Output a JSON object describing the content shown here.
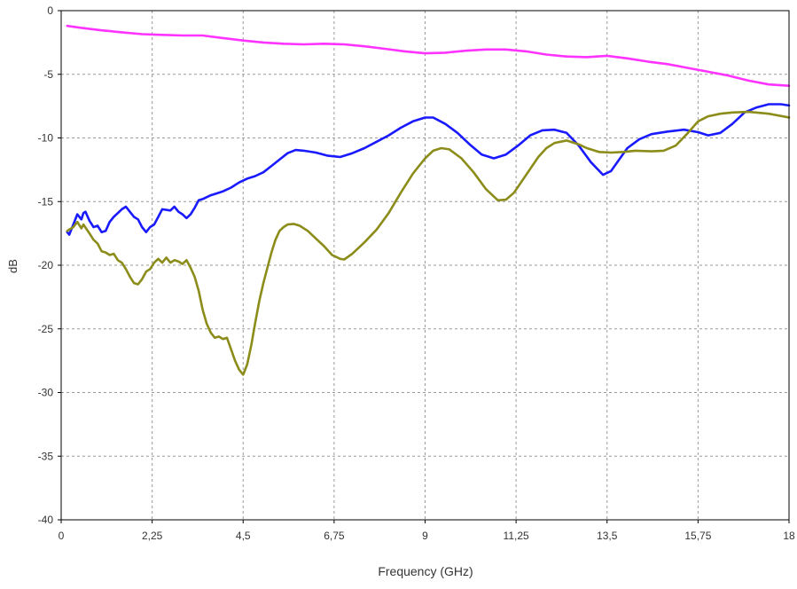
{
  "chart_data": {
    "type": "line",
    "title": "",
    "xlabel": "Frequency (GHz)",
    "ylabel": "dB",
    "xlim": [
      0,
      18
    ],
    "ylim": [
      -40,
      0
    ],
    "x_ticks": [
      0,
      2.25,
      4.5,
      6.75,
      9,
      11.25,
      13.5,
      15.75,
      18
    ],
    "x_tick_labels": [
      "0",
      "2,25",
      "4,5",
      "6,75",
      "9",
      "11,25",
      "13,5",
      "15,75",
      "18"
    ],
    "y_ticks": [
      0,
      -5,
      -10,
      -15,
      -20,
      -25,
      -30,
      -35,
      -40
    ],
    "y_tick_labels": [
      "0",
      "-5",
      "-10",
      "-15",
      "-20",
      "-25",
      "-30",
      "-35",
      "-40"
    ],
    "grid": true,
    "grid_style": "dashed",
    "series": [
      {
        "color": "#ff33ff",
        "points": [
          [
            0.15,
            -1.2
          ],
          [
            0.5,
            -1.35
          ],
          [
            1.0,
            -1.55
          ],
          [
            1.5,
            -1.7
          ],
          [
            2.0,
            -1.85
          ],
          [
            2.5,
            -1.9
          ],
          [
            3.0,
            -1.95
          ],
          [
            3.5,
            -1.95
          ],
          [
            4.0,
            -2.15
          ],
          [
            4.5,
            -2.35
          ],
          [
            5.0,
            -2.5
          ],
          [
            5.5,
            -2.6
          ],
          [
            6.0,
            -2.65
          ],
          [
            6.5,
            -2.6
          ],
          [
            7.0,
            -2.65
          ],
          [
            7.5,
            -2.8
          ],
          [
            8.0,
            -3.0
          ],
          [
            8.5,
            -3.2
          ],
          [
            9.0,
            -3.35
          ],
          [
            9.5,
            -3.3
          ],
          [
            10.0,
            -3.15
          ],
          [
            10.5,
            -3.05
          ],
          [
            11.0,
            -3.05
          ],
          [
            11.5,
            -3.2
          ],
          [
            12.0,
            -3.45
          ],
          [
            12.5,
            -3.6
          ],
          [
            13.0,
            -3.65
          ],
          [
            13.5,
            -3.55
          ],
          [
            14.0,
            -3.75
          ],
          [
            14.5,
            -4.0
          ],
          [
            15.0,
            -4.2
          ],
          [
            15.5,
            -4.5
          ],
          [
            16.0,
            -4.8
          ],
          [
            16.5,
            -5.1
          ],
          [
            17.0,
            -5.5
          ],
          [
            17.5,
            -5.8
          ],
          [
            18.0,
            -5.9
          ]
        ]
      },
      {
        "color": "#1a1aff",
        "points": [
          [
            0.15,
            -17.4
          ],
          [
            0.2,
            -17.6
          ],
          [
            0.3,
            -16.8
          ],
          [
            0.4,
            -16.0
          ],
          [
            0.5,
            -16.4
          ],
          [
            0.55,
            -15.9
          ],
          [
            0.6,
            -15.8
          ],
          [
            0.7,
            -16.5
          ],
          [
            0.8,
            -17.0
          ],
          [
            0.9,
            -16.9
          ],
          [
            1.0,
            -17.4
          ],
          [
            1.1,
            -17.3
          ],
          [
            1.2,
            -16.6
          ],
          [
            1.3,
            -16.2
          ],
          [
            1.4,
            -15.9
          ],
          [
            1.5,
            -15.6
          ],
          [
            1.6,
            -15.4
          ],
          [
            1.7,
            -15.8
          ],
          [
            1.8,
            -16.2
          ],
          [
            1.9,
            -16.4
          ],
          [
            2.0,
            -17.0
          ],
          [
            2.1,
            -17.4
          ],
          [
            2.2,
            -17.0
          ],
          [
            2.3,
            -16.8
          ],
          [
            2.4,
            -16.2
          ],
          [
            2.5,
            -15.6
          ],
          [
            2.7,
            -15.7
          ],
          [
            2.8,
            -15.4
          ],
          [
            2.9,
            -15.8
          ],
          [
            3.0,
            -16.0
          ],
          [
            3.1,
            -16.3
          ],
          [
            3.2,
            -16.0
          ],
          [
            3.3,
            -15.5
          ],
          [
            3.4,
            -14.9
          ],
          [
            3.5,
            -14.8
          ],
          [
            3.7,
            -14.5
          ],
          [
            3.9,
            -14.3
          ],
          [
            4.0,
            -14.2
          ],
          [
            4.2,
            -13.9
          ],
          [
            4.4,
            -13.5
          ],
          [
            4.6,
            -13.2
          ],
          [
            4.8,
            -13.0
          ],
          [
            5.0,
            -12.7
          ],
          [
            5.2,
            -12.2
          ],
          [
            5.4,
            -11.7
          ],
          [
            5.6,
            -11.2
          ],
          [
            5.8,
            -10.95
          ],
          [
            6.0,
            -11.0
          ],
          [
            6.3,
            -11.15
          ],
          [
            6.6,
            -11.4
          ],
          [
            6.9,
            -11.5
          ],
          [
            7.2,
            -11.2
          ],
          [
            7.5,
            -10.8
          ],
          [
            7.8,
            -10.3
          ],
          [
            8.1,
            -9.8
          ],
          [
            8.4,
            -9.2
          ],
          [
            8.7,
            -8.7
          ],
          [
            9.0,
            -8.4
          ],
          [
            9.2,
            -8.4
          ],
          [
            9.5,
            -8.9
          ],
          [
            9.8,
            -9.6
          ],
          [
            10.1,
            -10.5
          ],
          [
            10.4,
            -11.3
          ],
          [
            10.7,
            -11.6
          ],
          [
            11.0,
            -11.3
          ],
          [
            11.3,
            -10.6
          ],
          [
            11.6,
            -9.8
          ],
          [
            11.9,
            -9.4
          ],
          [
            12.2,
            -9.35
          ],
          [
            12.5,
            -9.6
          ],
          [
            12.8,
            -10.6
          ],
          [
            13.1,
            -11.9
          ],
          [
            13.4,
            -12.9
          ],
          [
            13.6,
            -12.6
          ],
          [
            13.8,
            -11.7
          ],
          [
            14.0,
            -10.8
          ],
          [
            14.3,
            -10.1
          ],
          [
            14.6,
            -9.7
          ],
          [
            15.0,
            -9.5
          ],
          [
            15.4,
            -9.35
          ],
          [
            15.75,
            -9.55
          ],
          [
            16.0,
            -9.8
          ],
          [
            16.3,
            -9.6
          ],
          [
            16.6,
            -8.9
          ],
          [
            16.9,
            -8.0
          ],
          [
            17.2,
            -7.6
          ],
          [
            17.5,
            -7.35
          ],
          [
            17.8,
            -7.35
          ],
          [
            18.0,
            -7.45
          ]
        ]
      },
      {
        "color": "#8c8c1a",
        "points": [
          [
            0.15,
            -17.3
          ],
          [
            0.3,
            -17.0
          ],
          [
            0.4,
            -16.6
          ],
          [
            0.5,
            -17.1
          ],
          [
            0.55,
            -16.8
          ],
          [
            0.7,
            -17.5
          ],
          [
            0.8,
            -18.0
          ],
          [
            0.9,
            -18.3
          ],
          [
            1.0,
            -18.9
          ],
          [
            1.1,
            -19.0
          ],
          [
            1.2,
            -19.2
          ],
          [
            1.3,
            -19.1
          ],
          [
            1.4,
            -19.6
          ],
          [
            1.5,
            -19.8
          ],
          [
            1.6,
            -20.3
          ],
          [
            1.7,
            -20.9
          ],
          [
            1.8,
            -21.4
          ],
          [
            1.9,
            -21.5
          ],
          [
            2.0,
            -21.1
          ],
          [
            2.1,
            -20.5
          ],
          [
            2.2,
            -20.3
          ],
          [
            2.3,
            -19.8
          ],
          [
            2.4,
            -19.5
          ],
          [
            2.5,
            -19.8
          ],
          [
            2.6,
            -19.4
          ],
          [
            2.7,
            -19.8
          ],
          [
            2.8,
            -19.6
          ],
          [
            2.9,
            -19.7
          ],
          [
            3.0,
            -19.9
          ],
          [
            3.1,
            -19.6
          ],
          [
            3.2,
            -20.2
          ],
          [
            3.3,
            -20.9
          ],
          [
            3.4,
            -22.0
          ],
          [
            3.5,
            -23.5
          ],
          [
            3.6,
            -24.6
          ],
          [
            3.7,
            -25.3
          ],
          [
            3.8,
            -25.7
          ],
          [
            3.9,
            -25.6
          ],
          [
            4.0,
            -25.8
          ],
          [
            4.1,
            -25.7
          ],
          [
            4.2,
            -26.6
          ],
          [
            4.3,
            -27.5
          ],
          [
            4.4,
            -28.2
          ],
          [
            4.5,
            -28.6
          ],
          [
            4.6,
            -27.8
          ],
          [
            4.7,
            -26.3
          ],
          [
            4.8,
            -24.5
          ],
          [
            4.9,
            -22.8
          ],
          [
            5.0,
            -21.4
          ],
          [
            5.1,
            -20.2
          ],
          [
            5.2,
            -19.0
          ],
          [
            5.3,
            -18.0
          ],
          [
            5.4,
            -17.3
          ],
          [
            5.5,
            -17.0
          ],
          [
            5.6,
            -16.8
          ],
          [
            5.75,
            -16.75
          ],
          [
            5.9,
            -16.9
          ],
          [
            6.1,
            -17.3
          ],
          [
            6.3,
            -17.9
          ],
          [
            6.5,
            -18.5
          ],
          [
            6.7,
            -19.2
          ],
          [
            6.9,
            -19.5
          ],
          [
            7.0,
            -19.55
          ],
          [
            7.2,
            -19.1
          ],
          [
            7.5,
            -18.2
          ],
          [
            7.8,
            -17.2
          ],
          [
            8.1,
            -15.9
          ],
          [
            8.4,
            -14.3
          ],
          [
            8.7,
            -12.8
          ],
          [
            9.0,
            -11.6
          ],
          [
            9.2,
            -11.0
          ],
          [
            9.4,
            -10.8
          ],
          [
            9.6,
            -10.9
          ],
          [
            9.9,
            -11.6
          ],
          [
            10.2,
            -12.7
          ],
          [
            10.5,
            -14.0
          ],
          [
            10.8,
            -14.9
          ],
          [
            11.0,
            -14.85
          ],
          [
            11.2,
            -14.3
          ],
          [
            11.5,
            -12.9
          ],
          [
            11.8,
            -11.5
          ],
          [
            12.0,
            -10.8
          ],
          [
            12.2,
            -10.4
          ],
          [
            12.5,
            -10.2
          ],
          [
            12.8,
            -10.5
          ],
          [
            13.0,
            -10.8
          ],
          [
            13.3,
            -11.1
          ],
          [
            13.6,
            -11.15
          ],
          [
            13.9,
            -11.1
          ],
          [
            14.2,
            -11.0
          ],
          [
            14.6,
            -11.05
          ],
          [
            14.9,
            -11.0
          ],
          [
            15.2,
            -10.6
          ],
          [
            15.5,
            -9.6
          ],
          [
            15.75,
            -8.7
          ],
          [
            16.0,
            -8.3
          ],
          [
            16.3,
            -8.1
          ],
          [
            16.6,
            -8.0
          ],
          [
            17.0,
            -7.95
          ],
          [
            17.5,
            -8.1
          ],
          [
            18.0,
            -8.4
          ]
        ]
      }
    ]
  }
}
